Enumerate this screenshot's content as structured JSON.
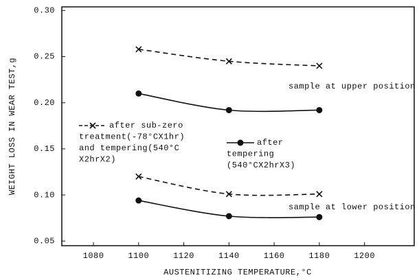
{
  "chart_data": {
    "type": "line",
    "xlabel": "AUSTENITIZING TEMPERATURE,°C",
    "ylabel": "WEIGHT LOSS IN WEAR TEST,g",
    "xlim": [
      1066,
      1222
    ],
    "xticks": [
      1080,
      1100,
      1120,
      1140,
      1160,
      1180,
      1200
    ],
    "ylim": [
      0.045,
      0.304
    ],
    "yticks": [
      {
        "value": 0.05,
        "label": "0.05"
      },
      {
        "value": 0.1,
        "label": "0.10"
      },
      {
        "value": 0.15,
        "label": "0.15"
      },
      {
        "value": 0.2,
        "label": "0.20"
      },
      {
        "value": 0.25,
        "label": "0.25"
      },
      {
        "value": 0.3,
        "label": "0.30"
      }
    ],
    "series": [
      {
        "name": "after sub-zero\ntreatment(-78°CX1hr)\nand tempering(540°C\nX2hrX2)",
        "color": "#111111",
        "dash": true,
        "marker": "x",
        "x": [
          1100,
          1140,
          1180
        ],
        "values": [
          0.258,
          0.245,
          0.24
        ]
      },
      {
        "name": "after\ntempering\n(540°CX2hrX3)",
        "color": "#111111",
        "dash": false,
        "marker": "dot",
        "x": [
          1100,
          1140,
          1180
        ],
        "values": [
          0.21,
          0.192,
          0.192
        ]
      },
      {
        "color": "#111111",
        "dash": true,
        "marker": "x",
        "x": [
          1100,
          1140,
          1180
        ],
        "values": [
          0.12,
          0.101,
          0.101
        ]
      },
      {
        "color": "#111111",
        "dash": false,
        "marker": "dot",
        "x": [
          1100,
          1140,
          1180
        ],
        "values": [
          0.094,
          0.077,
          0.076
        ]
      }
    ],
    "annotations": [
      "sample at upper position",
      "sample at lower position"
    ]
  }
}
